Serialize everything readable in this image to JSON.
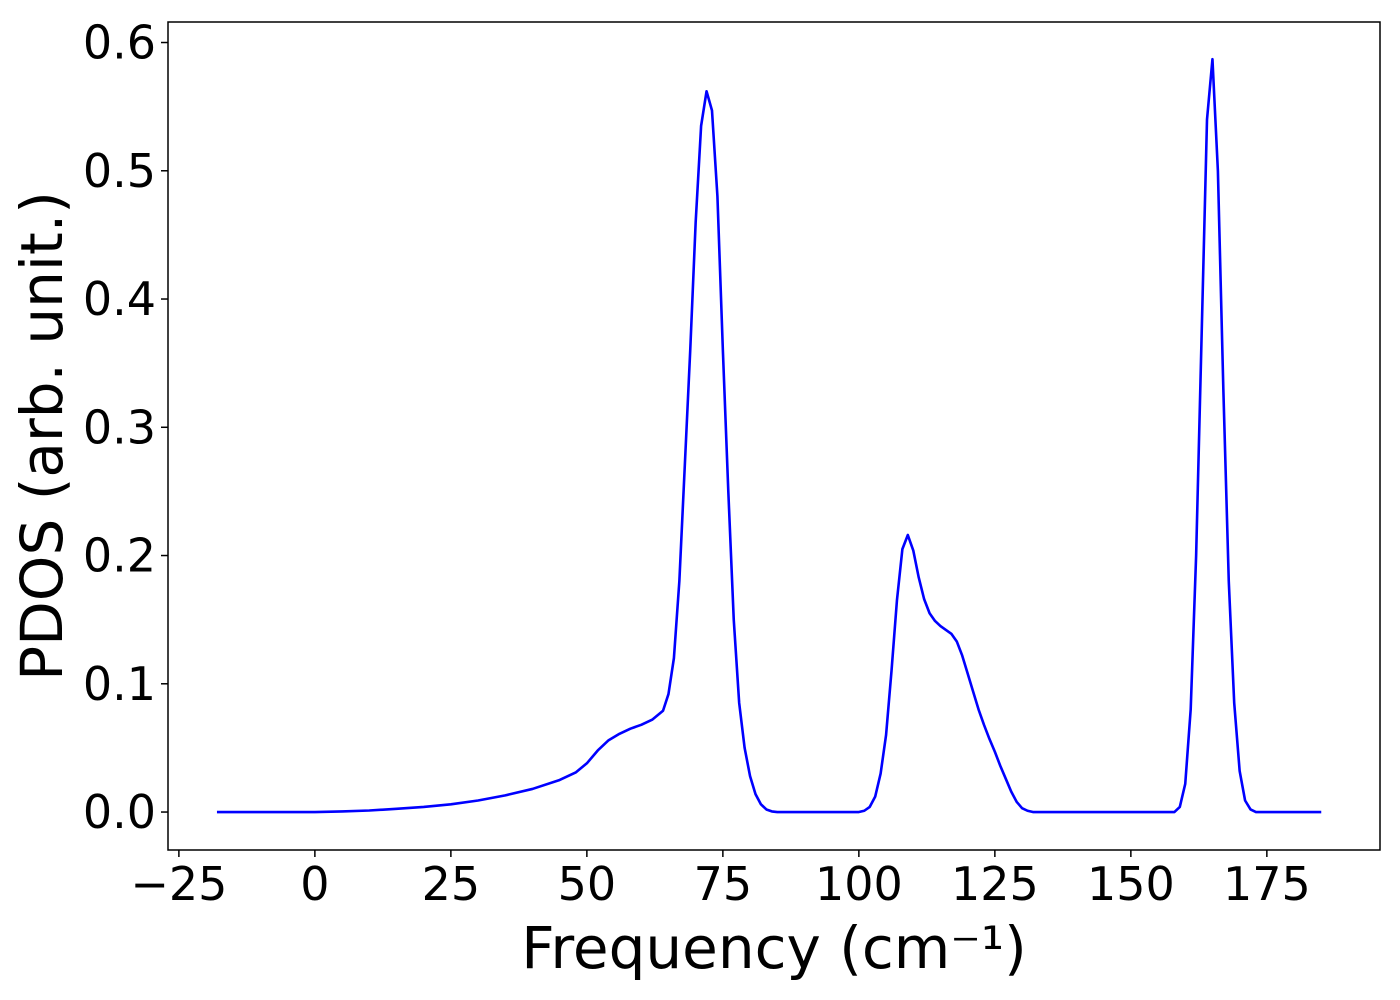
{
  "chart_data": {
    "type": "line",
    "xlabel": "Frequency (cm⁻¹)",
    "ylabel": "PDOS (arb. unit.)",
    "x": [
      -18,
      0,
      5,
      10,
      15,
      20,
      25,
      30,
      35,
      40,
      45,
      48,
      50,
      52,
      54,
      56,
      58,
      60,
      62,
      64,
      65,
      66,
      67,
      68,
      69,
      70,
      71,
      72,
      73,
      74,
      75,
      76,
      77,
      78,
      79,
      80,
      81,
      82,
      83,
      84,
      85,
      100,
      101,
      102,
      103,
      104,
      105,
      106,
      107,
      108,
      109,
      110,
      111,
      112,
      113,
      114,
      115,
      116,
      117,
      118,
      119,
      120,
      121,
      122,
      123,
      124,
      125,
      126,
      127,
      128,
      129,
      130,
      131,
      132,
      158,
      159,
      160,
      161,
      162,
      163,
      164,
      165,
      166,
      167,
      168,
      169,
      170,
      171,
      172,
      173,
      185
    ],
    "series": [
      {
        "color": "#0000ff",
        "values": [
          0,
          0,
          0.0005,
          0.0012,
          0.0025,
          0.004,
          0.006,
          0.009,
          0.013,
          0.018,
          0.025,
          0.031,
          0.038,
          0.048,
          0.056,
          0.061,
          0.065,
          0.068,
          0.072,
          0.079,
          0.092,
          0.12,
          0.18,
          0.27,
          0.36,
          0.46,
          0.535,
          0.562,
          0.547,
          0.48,
          0.36,
          0.25,
          0.15,
          0.085,
          0.05,
          0.028,
          0.014,
          0.006,
          0.002,
          0.0005,
          0,
          0,
          0.001,
          0.004,
          0.012,
          0.03,
          0.06,
          0.11,
          0.165,
          0.205,
          0.216,
          0.204,
          0.183,
          0.166,
          0.155,
          0.149,
          0.145,
          0.142,
          0.139,
          0.133,
          0.122,
          0.108,
          0.094,
          0.08,
          0.068,
          0.057,
          0.047,
          0.036,
          0.026,
          0.016,
          0.008,
          0.003,
          0.001,
          0,
          0,
          0.004,
          0.022,
          0.08,
          0.2,
          0.37,
          0.54,
          0.587,
          0.5,
          0.33,
          0.18,
          0.085,
          0.032,
          0.009,
          0.002,
          0,
          0
        ]
      }
    ],
    "xlim": [
      -27,
      195.8
    ],
    "ylim": [
      -0.0296,
      0.616
    ],
    "xticks": [
      {
        "value": -25,
        "label": "−25"
      },
      0,
      25,
      50,
      75,
      100,
      125,
      150,
      175
    ],
    "yticks": [
      {
        "value": 0,
        "label": "0.0"
      },
      0.1,
      0.2,
      0.3,
      0.4,
      0.5,
      0.6
    ]
  }
}
